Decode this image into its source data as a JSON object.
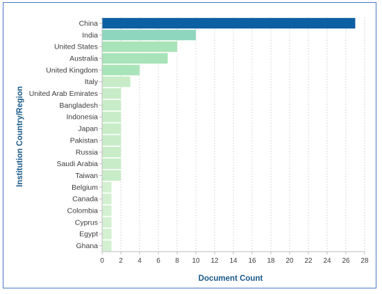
{
  "chart_data": {
    "type": "bar",
    "orientation": "horizontal",
    "xlabel": "Document Count",
    "ylabel": "Institution Country/Region",
    "xlim": [
      0,
      28
    ],
    "xticks": [
      0,
      2,
      4,
      6,
      8,
      10,
      12,
      14,
      16,
      18,
      20,
      22,
      24,
      26,
      28
    ],
    "grid": true,
    "categories": [
      "China",
      "India",
      "United States",
      "Australia",
      "United Kingdom",
      "Italy",
      "United Arab Emirates",
      "Bangladesh",
      "Indonesia",
      "Japan",
      "Pakistan",
      "Russia",
      "Saudi Arabia",
      "Taiwan",
      "Belgium",
      "Canada",
      "Colombia",
      "Cyprus",
      "Egypt",
      "Ghana"
    ],
    "values": [
      27,
      10,
      8,
      7,
      4,
      3,
      2,
      2,
      2,
      2,
      2,
      2,
      2,
      2,
      1,
      1,
      1,
      1,
      1,
      1
    ],
    "colors": {
      "top": "#0d5fa3",
      "high": "#8fd6bf",
      "mid": "#a9e3b9",
      "low": "#c7ecc7",
      "lowest": "#d3f0d1"
    }
  }
}
